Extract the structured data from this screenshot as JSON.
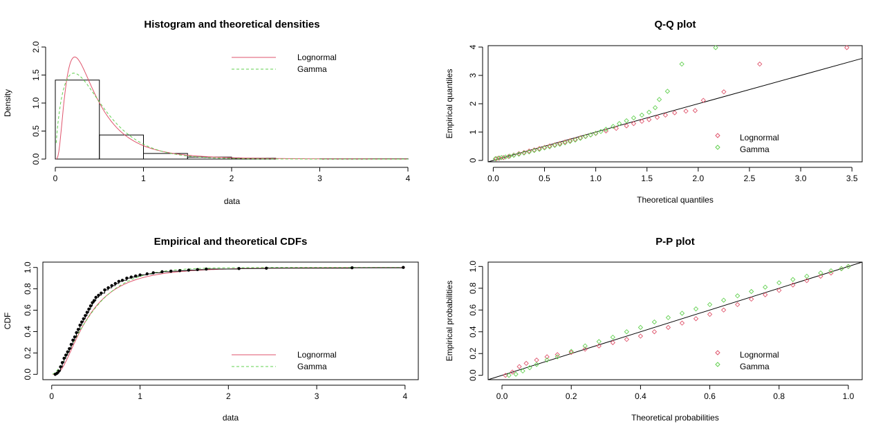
{
  "colors": {
    "lognormal": "#DF536B",
    "gamma": "#61D04F",
    "axis": "#000000",
    "frame": "#000000"
  },
  "chart_data": [
    {
      "id": "density",
      "type": "histogram_density",
      "title": "Histogram and theoretical densities",
      "xlabel": "data",
      "ylabel": "Density",
      "xlim": [
        0,
        4
      ],
      "ylim": [
        0,
        2.0
      ],
      "xticks": [
        0,
        1,
        2,
        3,
        4
      ],
      "yticks": [
        0.0,
        0.5,
        1.0,
        1.5,
        2.0
      ],
      "ytick_labels": [
        "0.0",
        "0.5",
        "1.0",
        "1.5",
        "2.0"
      ],
      "bins": [
        {
          "x0": 0.0,
          "x1": 0.5,
          "density": 1.41
        },
        {
          "x0": 0.5,
          "x1": 1.0,
          "density": 0.43
        },
        {
          "x0": 1.0,
          "x1": 1.5,
          "density": 0.1
        },
        {
          "x0": 1.5,
          "x1": 2.0,
          "density": 0.035
        },
        {
          "x0": 2.0,
          "x1": 2.5,
          "density": 0.015
        },
        {
          "x0": 2.5,
          "x1": 3.0,
          "density": 0.0
        },
        {
          "x0": 3.0,
          "x1": 3.5,
          "density": 0.005
        },
        {
          "x0": 3.5,
          "x1": 4.0,
          "density": 0.005
        }
      ],
      "series": [
        {
          "name": "Lognormal",
          "dist": "lnorm",
          "meanlog": -0.95,
          "sdlog": 0.75,
          "linestyle": "solid"
        },
        {
          "name": "Gamma",
          "dist": "gamma",
          "shape": 1.8,
          "rate": 3.8,
          "linestyle": "dashed"
        }
      ],
      "legend": "top-right"
    },
    {
      "id": "qq",
      "type": "scatter",
      "title": "Q-Q plot",
      "xlabel": "Theoretical quantiles",
      "ylabel": "Empirical quantiles",
      "xlim": [
        -0.05,
        3.6
      ],
      "ylim": [
        -0.05,
        4.05
      ],
      "xticks": [
        0.0,
        0.5,
        1.0,
        1.5,
        2.0,
        2.5,
        3.0,
        3.5
      ],
      "xtick_labels": [
        "0.0",
        "0.5",
        "1.0",
        "1.5",
        "2.0",
        "2.5",
        "3.0",
        "3.5"
      ],
      "yticks": [
        0,
        1,
        2,
        3,
        4
      ],
      "ytick_labels": [
        "0",
        "1",
        "2",
        "3",
        "4"
      ],
      "reference_line": "y = x",
      "series": [
        {
          "name": "Lognormal",
          "points": [
            [
              0.03,
              0.06
            ],
            [
              0.06,
              0.08
            ],
            [
              0.1,
              0.1
            ],
            [
              0.15,
              0.14
            ],
            [
              0.2,
              0.19
            ],
            [
              0.25,
              0.24
            ],
            [
              0.3,
              0.28
            ],
            [
              0.35,
              0.33
            ],
            [
              0.4,
              0.37
            ],
            [
              0.45,
              0.42
            ],
            [
              0.5,
              0.46
            ],
            [
              0.55,
              0.51
            ],
            [
              0.6,
              0.55
            ],
            [
              0.65,
              0.6
            ],
            [
              0.7,
              0.65
            ],
            [
              0.75,
              0.7
            ],
            [
              0.8,
              0.74
            ],
            [
              0.85,
              0.8
            ],
            [
              0.9,
              0.85
            ],
            [
              0.95,
              0.9
            ],
            [
              1.0,
              0.95
            ],
            [
              1.1,
              1.04
            ],
            [
              1.2,
              1.13
            ],
            [
              1.3,
              1.22
            ],
            [
              1.37,
              1.3
            ],
            [
              1.45,
              1.38
            ],
            [
              1.52,
              1.44
            ],
            [
              1.6,
              1.52
            ],
            [
              1.68,
              1.6
            ],
            [
              1.77,
              1.68
            ],
            [
              1.88,
              1.74
            ],
            [
              1.97,
              1.76
            ],
            [
              2.05,
              2.12
            ],
            [
              2.25,
              2.42
            ],
            [
              2.6,
              3.4
            ],
            [
              3.45,
              3.98
            ]
          ]
        },
        {
          "name": "Gamma",
          "points": [
            [
              0.02,
              0.06
            ],
            [
              0.05,
              0.08
            ],
            [
              0.08,
              0.1
            ],
            [
              0.12,
              0.12
            ],
            [
              0.16,
              0.15
            ],
            [
              0.2,
              0.18
            ],
            [
              0.25,
              0.22
            ],
            [
              0.3,
              0.26
            ],
            [
              0.35,
              0.3
            ],
            [
              0.4,
              0.35
            ],
            [
              0.45,
              0.39
            ],
            [
              0.5,
              0.44
            ],
            [
              0.55,
              0.48
            ],
            [
              0.6,
              0.53
            ],
            [
              0.65,
              0.57
            ],
            [
              0.7,
              0.62
            ],
            [
              0.75,
              0.67
            ],
            [
              0.8,
              0.72
            ],
            [
              0.85,
              0.78
            ],
            [
              0.9,
              0.84
            ],
            [
              0.95,
              0.9
            ],
            [
              1.0,
              0.96
            ],
            [
              1.05,
              1.02
            ],
            [
              1.1,
              1.1
            ],
            [
              1.17,
              1.2
            ],
            [
              1.23,
              1.3
            ],
            [
              1.3,
              1.4
            ],
            [
              1.37,
              1.5
            ],
            [
              1.45,
              1.6
            ],
            [
              1.52,
              1.7
            ],
            [
              1.58,
              1.86
            ],
            [
              1.62,
              2.15
            ],
            [
              1.7,
              2.44
            ],
            [
              1.84,
              3.4
            ],
            [
              2.17,
              3.98
            ]
          ]
        }
      ],
      "legend": "bottom-right"
    },
    {
      "id": "cdf",
      "type": "ecdf",
      "title": "Empirical and theoretical CDFs",
      "xlabel": "data",
      "ylabel": "CDF",
      "xlim": [
        -0.1,
        4.15
      ],
      "ylim": [
        -0.05,
        1.05
      ],
      "xticks": [
        0,
        1,
        2,
        3,
        4
      ],
      "yticks": [
        0.0,
        0.2,
        0.4,
        0.6,
        0.8,
        1.0
      ],
      "ytick_labels": [
        "0.0",
        "0.2",
        "0.4",
        "0.6",
        "0.8",
        "1.0"
      ],
      "empirical": [
        [
          0.04,
          0.0
        ],
        [
          0.06,
          0.01
        ],
        [
          0.08,
          0.03
        ],
        [
          0.1,
          0.07
        ],
        [
          0.12,
          0.11
        ],
        [
          0.14,
          0.15
        ],
        [
          0.16,
          0.18
        ],
        [
          0.18,
          0.21
        ],
        [
          0.2,
          0.24
        ],
        [
          0.22,
          0.28
        ],
        [
          0.24,
          0.32
        ],
        [
          0.26,
          0.35
        ],
        [
          0.28,
          0.39
        ],
        [
          0.3,
          0.42
        ],
        [
          0.32,
          0.46
        ],
        [
          0.34,
          0.49
        ],
        [
          0.36,
          0.52
        ],
        [
          0.38,
          0.55
        ],
        [
          0.4,
          0.58
        ],
        [
          0.42,
          0.61
        ],
        [
          0.44,
          0.64
        ],
        [
          0.46,
          0.67
        ],
        [
          0.48,
          0.69
        ],
        [
          0.5,
          0.72
        ],
        [
          0.53,
          0.74
        ],
        [
          0.56,
          0.76
        ],
        [
          0.6,
          0.79
        ],
        [
          0.64,
          0.81
        ],
        [
          0.68,
          0.83
        ],
        [
          0.72,
          0.85
        ],
        [
          0.76,
          0.87
        ],
        [
          0.8,
          0.88
        ],
        [
          0.85,
          0.9
        ],
        [
          0.9,
          0.91
        ],
        [
          0.95,
          0.92
        ],
        [
          1.0,
          0.93
        ],
        [
          1.08,
          0.94
        ],
        [
          1.15,
          0.95
        ],
        [
          1.25,
          0.96
        ],
        [
          1.35,
          0.965
        ],
        [
          1.45,
          0.97
        ],
        [
          1.55,
          0.975
        ],
        [
          1.65,
          0.98
        ],
        [
          1.75,
          0.985
        ],
        [
          2.12,
          0.99
        ],
        [
          2.43,
          0.993
        ],
        [
          3.4,
          0.997
        ],
        [
          3.98,
          1.0
        ]
      ],
      "series": [
        {
          "name": "Lognormal",
          "linestyle": "solid"
        },
        {
          "name": "Gamma",
          "linestyle": "dashed"
        }
      ],
      "legend": "bottom-right"
    },
    {
      "id": "pp",
      "type": "scatter",
      "title": "P-P plot",
      "xlabel": "Theoretical probabilities",
      "ylabel": "Empirical probabilities",
      "xlim": [
        -0.04,
        1.04
      ],
      "ylim": [
        -0.04,
        1.04
      ],
      "xticks": [
        0.0,
        0.2,
        0.4,
        0.6,
        0.8,
        1.0
      ],
      "xtick_labels": [
        "0.0",
        "0.2",
        "0.4",
        "0.6",
        "0.8",
        "1.0"
      ],
      "yticks": [
        0.0,
        0.2,
        0.4,
        0.6,
        0.8,
        1.0
      ],
      "ytick_labels": [
        "0.0",
        "0.2",
        "0.4",
        "0.6",
        "0.8",
        "1.0"
      ],
      "reference_line": "y = x",
      "series": [
        {
          "name": "Lognormal",
          "points": [
            [
              0.01,
              0.0
            ],
            [
              0.03,
              0.03
            ],
            [
              0.05,
              0.08
            ],
            [
              0.07,
              0.11
            ],
            [
              0.1,
              0.14
            ],
            [
              0.13,
              0.17
            ],
            [
              0.16,
              0.19
            ],
            [
              0.2,
              0.21
            ],
            [
              0.24,
              0.24
            ],
            [
              0.28,
              0.27
            ],
            [
              0.32,
              0.3
            ],
            [
              0.36,
              0.33
            ],
            [
              0.4,
              0.36
            ],
            [
              0.44,
              0.4
            ],
            [
              0.48,
              0.44
            ],
            [
              0.52,
              0.48
            ],
            [
              0.56,
              0.52
            ],
            [
              0.6,
              0.56
            ],
            [
              0.64,
              0.6
            ],
            [
              0.68,
              0.65
            ],
            [
              0.72,
              0.7
            ],
            [
              0.76,
              0.74
            ],
            [
              0.8,
              0.78
            ],
            [
              0.84,
              0.83
            ],
            [
              0.88,
              0.87
            ],
            [
              0.92,
              0.91
            ],
            [
              0.95,
              0.94
            ],
            [
              0.98,
              0.98
            ],
            [
              1.0,
              1.0
            ]
          ]
        },
        {
          "name": "Gamma",
          "points": [
            [
              0.02,
              0.0
            ],
            [
              0.04,
              0.01
            ],
            [
              0.06,
              0.04
            ],
            [
              0.08,
              0.07
            ],
            [
              0.1,
              0.1
            ],
            [
              0.13,
              0.14
            ],
            [
              0.16,
              0.17
            ],
            [
              0.2,
              0.22
            ],
            [
              0.24,
              0.27
            ],
            [
              0.28,
              0.31
            ],
            [
              0.32,
              0.35
            ],
            [
              0.36,
              0.4
            ],
            [
              0.4,
              0.44
            ],
            [
              0.44,
              0.49
            ],
            [
              0.48,
              0.53
            ],
            [
              0.52,
              0.57
            ],
            [
              0.56,
              0.61
            ],
            [
              0.6,
              0.65
            ],
            [
              0.64,
              0.69
            ],
            [
              0.68,
              0.73
            ],
            [
              0.72,
              0.77
            ],
            [
              0.76,
              0.81
            ],
            [
              0.8,
              0.85
            ],
            [
              0.84,
              0.88
            ],
            [
              0.88,
              0.91
            ],
            [
              0.92,
              0.94
            ],
            [
              0.95,
              0.96
            ],
            [
              0.98,
              0.98
            ],
            [
              1.0,
              1.0
            ]
          ]
        }
      ],
      "legend": "bottom-right"
    }
  ]
}
